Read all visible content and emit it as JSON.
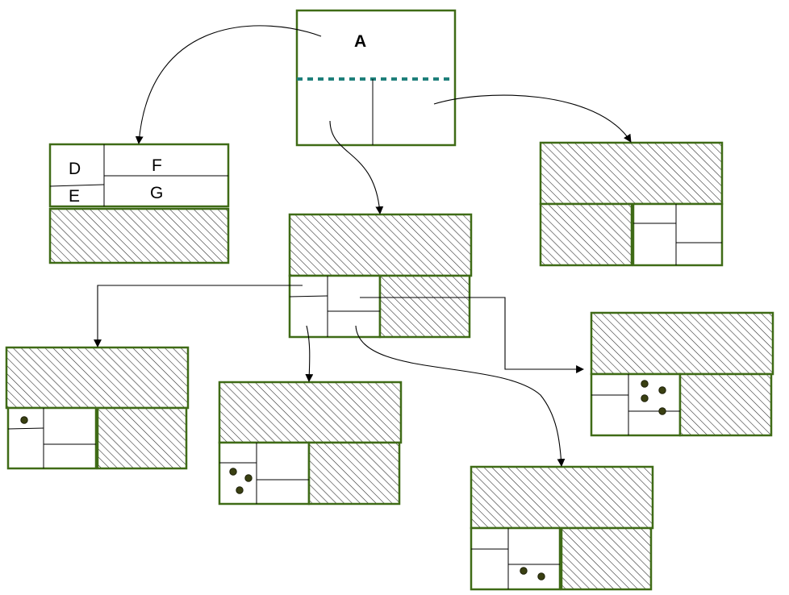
{
  "diagram": {
    "root_label": "A",
    "labels": {
      "d": "D",
      "e": "E",
      "f": "F",
      "g": "G"
    }
  },
  "colors": {
    "box_stroke": "#3f6b16",
    "dash": "#1e7f7a",
    "dot": "#3a4012"
  }
}
